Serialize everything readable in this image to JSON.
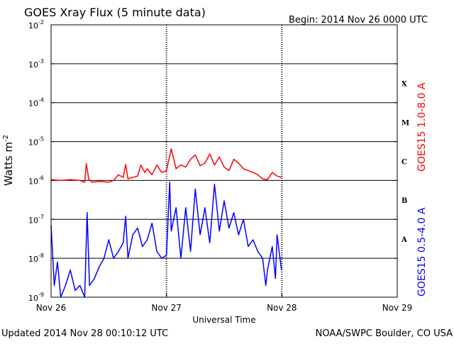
{
  "header": {
    "title": "GOES Xray Flux (5 minute data)",
    "begin": "Begin:  2014 Nov 26 0000 UTC"
  },
  "footer": {
    "updated": "Updated 2014 Nov 28 00:10:12 UTC",
    "credit": "NOAA/SWPC Boulder, CO USA"
  },
  "colors": {
    "long": "#ff0000",
    "short": "#0000ff",
    "axis": "#000000"
  },
  "chart_data": {
    "type": "line",
    "title": "GOES Xray Flux (5 minute data)",
    "xlabel": "Universal Time",
    "ylabel": "Watts m",
    "ylabel_sup": "-2",
    "y_scale": "log",
    "ylim": [
      1e-09,
      0.01
    ],
    "xlim": [
      "2014-11-26",
      "2014-11-29"
    ],
    "x_ticks": [
      "Nov 26",
      "Nov 27",
      "Nov 28",
      "Nov 29"
    ],
    "y_ticks": [
      {
        "base": "10",
        "exp": "-9",
        "value": 1e-09
      },
      {
        "base": "10",
        "exp": "-8",
        "value": 1e-08
      },
      {
        "base": "10",
        "exp": "-7",
        "value": 1e-07
      },
      {
        "base": "10",
        "exp": "-6",
        "value": 1e-06
      },
      {
        "base": "10",
        "exp": "-5",
        "value": 1e-05
      },
      {
        "base": "10",
        "exp": "-4",
        "value": 0.0001
      },
      {
        "base": "10",
        "exp": "-3",
        "value": 0.001
      },
      {
        "base": "10",
        "exp": "-2",
        "value": 0.01
      }
    ],
    "flare_classes": [
      {
        "label": "A",
        "value": 3e-08
      },
      {
        "label": "B",
        "value": 3e-07
      },
      {
        "label": "C",
        "value": 3e-06
      },
      {
        "label": "M",
        "value": 3e-05
      },
      {
        "label": "X",
        "value": 0.0003
      }
    ],
    "grid": true,
    "series": [
      {
        "name": "GOES15 1.0-8.0 A",
        "color": "#ff0000",
        "x": [
          "2014-11-26 00:00",
          "2014-11-26 02:00",
          "2014-11-26 04:00",
          "2014-11-26 06:00",
          "2014-11-26 07:00",
          "2014-11-26 07:20",
          "2014-11-26 07:50",
          "2014-11-26 08:30",
          "2014-11-26 10:00",
          "2014-11-26 12:00",
          "2014-11-26 13:00",
          "2014-11-26 14:00",
          "2014-11-26 15:00",
          "2014-11-26 15:30",
          "2014-11-26 16:00",
          "2014-11-26 17:00",
          "2014-11-26 18:00",
          "2014-11-26 18:40",
          "2014-11-26 19:30",
          "2014-11-26 20:00",
          "2014-11-26 21:00",
          "2014-11-26 22:00",
          "2014-11-26 23:00",
          "2014-11-27 00:00",
          "2014-11-27 01:00",
          "2014-11-27 02:00",
          "2014-11-27 03:00",
          "2014-11-27 04:00",
          "2014-11-27 05:00",
          "2014-11-27 06:00",
          "2014-11-27 07:00",
          "2014-11-27 08:00",
          "2014-11-27 09:00",
          "2014-11-27 10:00",
          "2014-11-27 11:00",
          "2014-11-27 12:00",
          "2014-11-27 13:00",
          "2014-11-27 14:00",
          "2014-11-27 15:00",
          "2014-11-27 16:00",
          "2014-11-27 17:00",
          "2014-11-27 18:00",
          "2014-11-27 19:00",
          "2014-11-27 20:00",
          "2014-11-27 21:00",
          "2014-11-27 22:00",
          "2014-11-27 23:00",
          "2014-11-27 23:55"
        ],
        "y": [
          1.05e-06,
          1e-06,
          1.05e-06,
          1e-06,
          9e-07,
          2.7e-06,
          1.1e-06,
          9e-07,
          9.5e-07,
          9e-07,
          1e-06,
          1.4e-06,
          1.2e-06,
          2.6e-06,
          1.1e-06,
          1.2e-06,
          1.3e-06,
          2.5e-06,
          1.6e-06,
          2e-06,
          1.4e-06,
          2.5e-06,
          1.6e-06,
          1.8e-06,
          6.5e-06,
          2e-06,
          2.5e-06,
          2.2e-06,
          3.5e-06,
          4.5e-06,
          2.4e-06,
          2.8e-06,
          4.8e-06,
          2.5e-06,
          4e-06,
          2.2e-06,
          1.8e-06,
          3.5e-06,
          2.8e-06,
          2e-06,
          1.8e-06,
          1.6e-06,
          1.4e-06,
          1.1e-06,
          1.05e-06,
          1.6e-06,
          1.3e-06,
          1.2e-06
        ]
      },
      {
        "name": "GOES15 0.5-4.0 A",
        "color": "#0000ff",
        "x": [
          "2014-11-26 00:00",
          "2014-11-26 00:40",
          "2014-11-26 01:20",
          "2014-11-26 02:00",
          "2014-11-26 03:00",
          "2014-11-26 04:00",
          "2014-11-26 05:00",
          "2014-11-26 06:00",
          "2014-11-26 07:00",
          "2014-11-26 07:30",
          "2014-11-26 08:00",
          "2014-11-26 09:00",
          "2014-11-26 10:00",
          "2014-11-26 11:00",
          "2014-11-26 12:00",
          "2014-11-26 13:00",
          "2014-11-26 14:00",
          "2014-11-26 15:00",
          "2014-11-26 15:30",
          "2014-11-26 16:00",
          "2014-11-26 17:00",
          "2014-11-26 18:00",
          "2014-11-26 19:00",
          "2014-11-26 20:00",
          "2014-11-26 21:00",
          "2014-11-26 22:00",
          "2014-11-26 23:00",
          "2014-11-27 00:00",
          "2014-11-27 00:40",
          "2014-11-27 01:00",
          "2014-11-27 02:00",
          "2014-11-27 03:00",
          "2014-11-27 04:00",
          "2014-11-27 05:00",
          "2014-11-27 06:00",
          "2014-11-27 07:00",
          "2014-11-27 08:00",
          "2014-11-27 09:00",
          "2014-11-27 10:00",
          "2014-11-27 11:00",
          "2014-11-27 12:00",
          "2014-11-27 13:00",
          "2014-11-27 14:00",
          "2014-11-27 15:00",
          "2014-11-27 16:00",
          "2014-11-27 17:00",
          "2014-11-27 18:00",
          "2014-11-27 19:00",
          "2014-11-27 20:00",
          "2014-11-27 20:40",
          "2014-11-27 21:00",
          "2014-11-27 22:00",
          "2014-11-27 22:40",
          "2014-11-27 23:00",
          "2014-11-27 23:55"
        ],
        "y": [
          7e-08,
          2e-09,
          8e-09,
          1e-09,
          2e-09,
          5e-09,
          1.5e-09,
          2e-09,
          1e-09,
          1.5e-07,
          2e-09,
          3e-09,
          6e-09,
          1e-08,
          3e-08,
          1e-08,
          1.5e-08,
          2.5e-08,
          1.2e-07,
          1e-08,
          4e-08,
          6e-08,
          2e-08,
          3e-08,
          8e-08,
          1.5e-08,
          1e-08,
          1.2e-08,
          9e-07,
          5e-08,
          2e-07,
          1e-08,
          2e-07,
          1.5e-08,
          6e-07,
          4e-08,
          2e-07,
          2.5e-08,
          8e-07,
          5e-08,
          3e-07,
          6e-08,
          1.5e-07,
          4e-08,
          1e-07,
          2e-08,
          3e-08,
          1.5e-08,
          1e-08,
          2e-09,
          5e-09,
          2e-08,
          3e-09,
          4e-08,
          5e-09
        ]
      }
    ]
  }
}
